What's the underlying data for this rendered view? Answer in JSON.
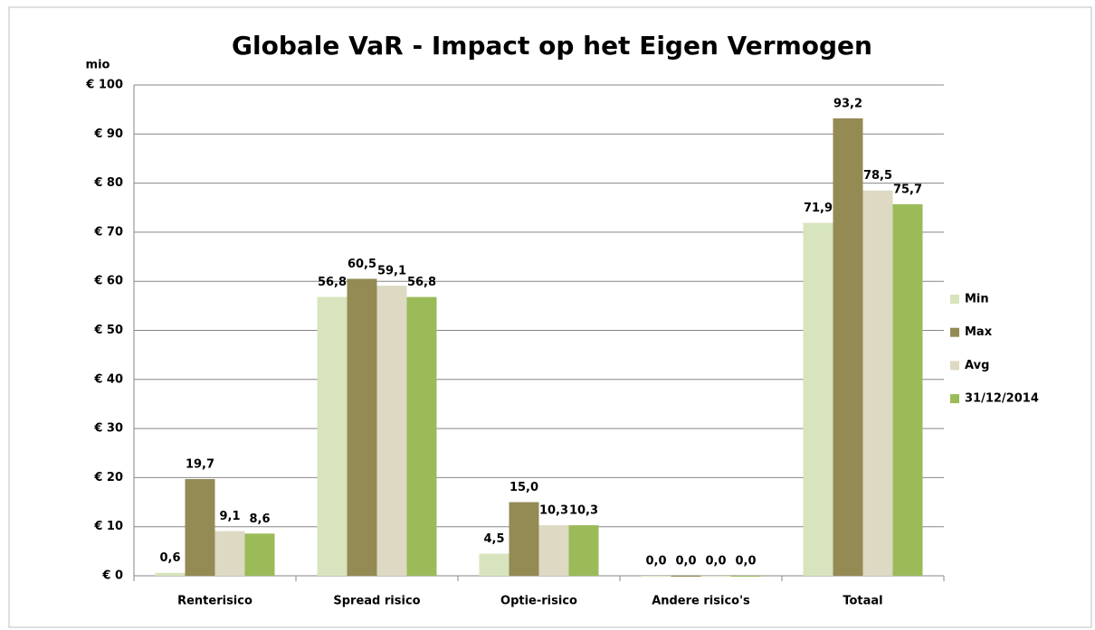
{
  "chart_data": {
    "type": "bar",
    "title": "Globale VaR - Impact op het Eigen Vermogen",
    "y_label": "mio",
    "categories": [
      "Renterisico",
      "Spread risico",
      "Optie-risico",
      "Andere risico's",
      "Totaal"
    ],
    "series": [
      {
        "name": "Min",
        "color": "#d7e4bd",
        "values": [
          0.6,
          56.8,
          4.5,
          0.0,
          71.9
        ],
        "value_labels": [
          "0,6",
          "56,8",
          "4,5",
          "0,0",
          "71,9"
        ]
      },
      {
        "name": "Max",
        "color": "#948a54",
        "values": [
          19.7,
          60.5,
          15.0,
          0.0,
          93.2
        ],
        "value_labels": [
          "19,7",
          "60,5",
          "15,0",
          "0,0",
          "93,2"
        ]
      },
      {
        "name": "Avg",
        "color": "#ddd9c3",
        "values": [
          9.1,
          59.1,
          10.3,
          0.0,
          78.5
        ],
        "value_labels": [
          "9,1",
          "59,1",
          "10,3",
          "0,0",
          "78,5"
        ]
      },
      {
        "name": "31/12/2014",
        "color": "#9bbb59",
        "values": [
          8.6,
          56.8,
          10.3,
          0.0,
          75.7
        ],
        "value_labels": [
          "8,6",
          "56,8",
          "10,3",
          "0,0",
          "75,7"
        ]
      }
    ],
    "ylim": [
      0,
      100
    ],
    "yticks": [
      {
        "value": 0,
        "label": "€ 0"
      },
      {
        "value": 10,
        "label": "€ 10"
      },
      {
        "value": 20,
        "label": "€ 20"
      },
      {
        "value": 30,
        "label": "€ 30"
      },
      {
        "value": 40,
        "label": "€ 40"
      },
      {
        "value": 50,
        "label": "€ 50"
      },
      {
        "value": 60,
        "label": "€ 60"
      },
      {
        "value": 70,
        "label": "€ 70"
      },
      {
        "value": 80,
        "label": "€ 80"
      },
      {
        "value": 90,
        "label": "€ 90"
      },
      {
        "value": 100,
        "label": "€ 100"
      }
    ],
    "grid": true,
    "legend": "right"
  }
}
